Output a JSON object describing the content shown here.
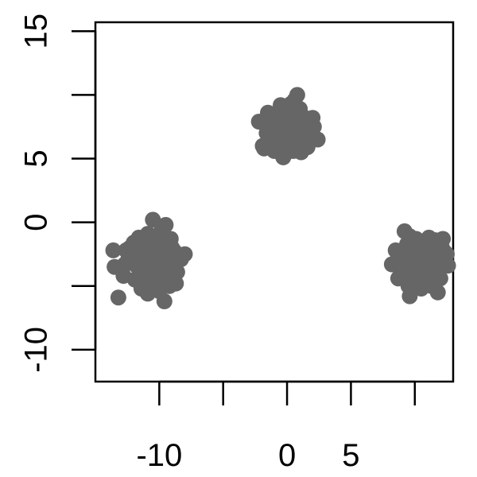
{
  "chart_data": {
    "type": "scatter",
    "title": "",
    "xlabel": "",
    "ylabel": "",
    "xlim": [
      -15,
      13
    ],
    "ylim": [
      -12.5,
      15.7
    ],
    "x_ticks": [
      -10,
      -5,
      0,
      5,
      10
    ],
    "x_tick_labels": [
      "-10",
      "",
      "0",
      "5",
      ""
    ],
    "y_ticks": [
      -10,
      -5,
      0,
      5,
      10,
      15
    ],
    "y_tick_labels": [
      "-10",
      "",
      "0",
      "5",
      "",
      "15"
    ],
    "grid": false,
    "point_color": "#666666",
    "series": [
      {
        "points": [
          [
            -1.2,
            7.8
          ],
          [
            -0.6,
            8.6
          ],
          [
            0.0,
            8.9
          ],
          [
            0.7,
            8.4
          ],
          [
            1.3,
            7.6
          ],
          [
            0.6,
            6.9
          ],
          [
            -0.1,
            6.4
          ],
          [
            -0.8,
            6.8
          ],
          [
            -1.6,
            7.0
          ],
          [
            -1.9,
            6.0
          ],
          [
            -1.0,
            5.6
          ],
          [
            -0.2,
            5.3
          ],
          [
            0.5,
            5.6
          ],
          [
            1.0,
            6.3
          ],
          [
            1.8,
            6.7
          ],
          [
            2.4,
            6.5
          ],
          [
            2.1,
            7.5
          ],
          [
            2.0,
            8.2
          ],
          [
            1.0,
            8.9
          ],
          [
            0.3,
            9.3
          ],
          [
            -0.5,
            9.2
          ],
          [
            -1.5,
            8.6
          ],
          [
            -2.2,
            7.9
          ],
          [
            -0.4,
            7.4
          ],
          [
            0.4,
            7.7
          ],
          [
            -1.8,
            5.8
          ],
          [
            0.8,
            10.0
          ],
          [
            1.4,
            8.2
          ],
          [
            -1.1,
            6.3
          ],
          [
            0.2,
            6.0
          ],
          [
            1.6,
            5.9
          ],
          [
            -0.7,
            8.0
          ],
          [
            0.9,
            7.2
          ],
          [
            -1.4,
            7.4
          ],
          [
            0.1,
            8.3
          ],
          [
            -0.3,
            5.1
          ],
          [
            1.1,
            5.5
          ],
          [
            0.6,
            9.6
          ]
        ]
      },
      {
        "points": [
          [
            -10.6,
            -2.6
          ],
          [
            -9.9,
            -2.1
          ],
          [
            -9.3,
            -2.8
          ],
          [
            -10.0,
            -3.6
          ],
          [
            -10.8,
            -3.3
          ],
          [
            -11.4,
            -2.2
          ],
          [
            -11.0,
            -1.4
          ],
          [
            -10.2,
            -1.2
          ],
          [
            -9.6,
            -1.6
          ],
          [
            -8.8,
            -2.3
          ],
          [
            -8.3,
            -2.9
          ],
          [
            -8.9,
            -3.6
          ],
          [
            -9.4,
            -4.2
          ],
          [
            -10.3,
            -4.5
          ],
          [
            -11.1,
            -4.1
          ],
          [
            -11.8,
            -3.4
          ],
          [
            -12.4,
            -2.8
          ],
          [
            -12.3,
            -2.0
          ],
          [
            -11.6,
            -1.2
          ],
          [
            -10.9,
            -0.9
          ],
          [
            -10.5,
            0.2
          ],
          [
            -9.9,
            -0.8
          ],
          [
            -9.5,
            -0.2
          ],
          [
            -10.4,
            -1.8
          ],
          [
            -9.0,
            -2.0
          ],
          [
            -8.0,
            -2.5
          ],
          [
            -8.6,
            -3.9
          ],
          [
            -9.2,
            -5.0
          ],
          [
            -10.0,
            -5.4
          ],
          [
            -10.9,
            -5.6
          ],
          [
            -11.9,
            -4.5
          ],
          [
            -12.7,
            -3.3
          ],
          [
            -12.6,
            -2.2
          ],
          [
            -13.5,
            -3.5
          ],
          [
            -13.6,
            -2.2
          ],
          [
            -12.0,
            -1.6
          ],
          [
            -11.3,
            -2.9
          ],
          [
            -9.8,
            -3.0
          ],
          [
            -10.5,
            -3.9
          ],
          [
            -9.6,
            -6.2
          ],
          [
            -10.2,
            -5.0
          ],
          [
            -11.4,
            -5.2
          ],
          [
            -12.8,
            -4.2
          ],
          [
            -13.2,
            -5.9
          ],
          [
            -8.7,
            -4.8
          ],
          [
            -11.5,
            -3.7
          ],
          [
            -10.7,
            -4.9
          ],
          [
            -9.1,
            -1.3
          ],
          [
            -10.8,
            -2.0
          ],
          [
            -9.7,
            -4.3
          ]
        ]
      },
      {
        "points": [
          [
            10.0,
            -3.5
          ],
          [
            10.8,
            -3.0
          ],
          [
            11.5,
            -3.4
          ],
          [
            11.9,
            -2.6
          ],
          [
            11.3,
            -2.0
          ],
          [
            10.6,
            -1.7
          ],
          [
            9.9,
            -2.2
          ],
          [
            9.2,
            -2.5
          ],
          [
            8.6,
            -3.0
          ],
          [
            8.9,
            -3.8
          ],
          [
            9.6,
            -4.2
          ],
          [
            10.4,
            -4.4
          ],
          [
            11.1,
            -4.1
          ],
          [
            11.8,
            -3.8
          ],
          [
            12.2,
            -3.2
          ],
          [
            12.3,
            -2.3
          ],
          [
            11.9,
            -1.7
          ],
          [
            11.1,
            -1.2
          ],
          [
            10.1,
            -1.3
          ],
          [
            9.4,
            -1.7
          ],
          [
            9.2,
            -0.7
          ],
          [
            9.6,
            -1.1
          ],
          [
            8.5,
            -2.2
          ],
          [
            8.2,
            -3.3
          ],
          [
            8.7,
            -4.4
          ],
          [
            9.5,
            -5.0
          ],
          [
            10.5,
            -5.2
          ],
          [
            11.4,
            -4.9
          ],
          [
            12.0,
            -4.4
          ],
          [
            12.6,
            -3.4
          ],
          [
            12.5,
            -2.5
          ],
          [
            12.1,
            -1.9
          ],
          [
            11.6,
            -1.4
          ],
          [
            10.2,
            -2.8
          ],
          [
            10.9,
            -3.8
          ],
          [
            9.7,
            -3.3
          ],
          [
            9.9,
            -4.6
          ],
          [
            11.8,
            -5.5
          ],
          [
            9.6,
            -5.8
          ],
          [
            12.2,
            -1.3
          ],
          [
            10.6,
            -2.4
          ],
          [
            11.3,
            -5.0
          ]
        ]
      }
    ]
  }
}
